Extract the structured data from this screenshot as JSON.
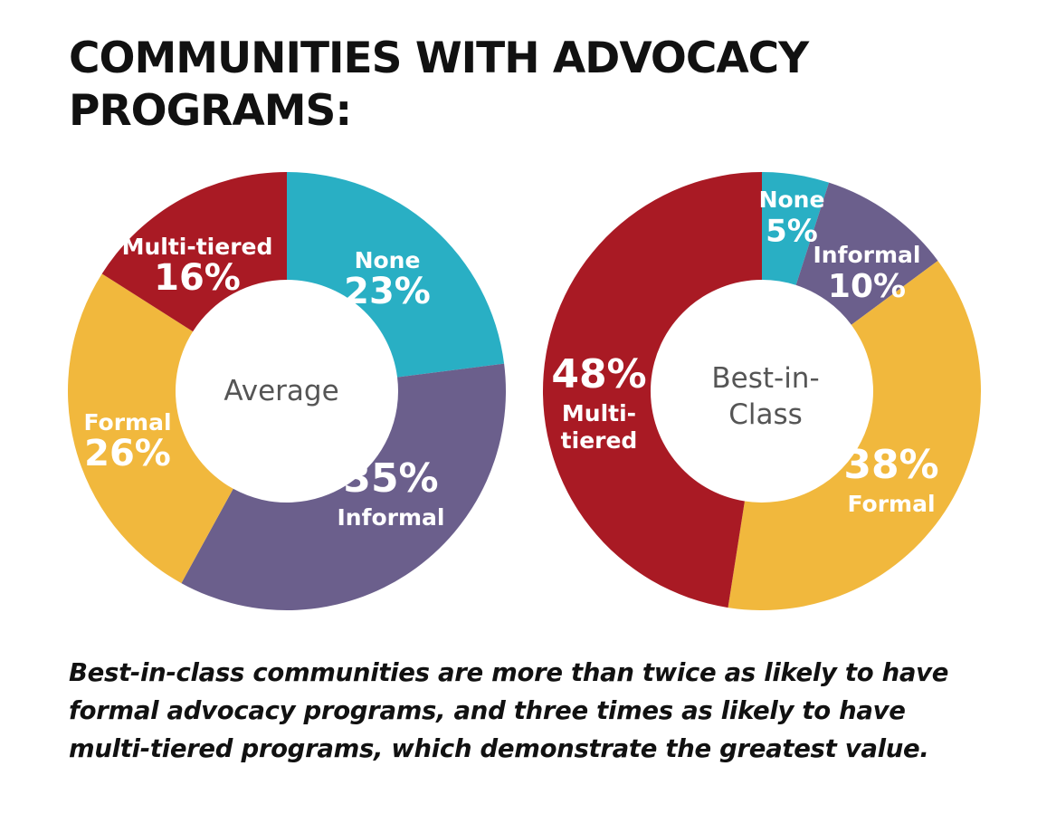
{
  "title": {
    "line1": "COMMUNITIES WITH ADVOCACY",
    "line2": "PROGRAMS:"
  },
  "caption": {
    "line1": "Best-in-class communities are more than twice as likely to have",
    "line2": "formal advocacy programs, and three times as likely to have",
    "line3": "multi-tiered programs, which demonstrate the greatest value."
  },
  "colors": {
    "None": "#29afc4",
    "Informal": "#6b5f8c",
    "Formal": "#f1b83d",
    "Multi-tiered": "#a91a24"
  },
  "chart_data": [
    {
      "type": "pie",
      "center_label": "Average",
      "slices": [
        {
          "category": "None",
          "value": 23,
          "label_pct": "23%",
          "label_name": "None"
        },
        {
          "category": "Informal",
          "value": 35,
          "label_pct": "35%",
          "label_name": "Informal"
        },
        {
          "category": "Formal",
          "value": 26,
          "label_pct": "26%",
          "label_name": "Formal"
        },
        {
          "category": "Multi-tiered",
          "value": 16,
          "label_pct": "16%",
          "label_name": "Multi-tiered"
        }
      ]
    },
    {
      "type": "pie",
      "center_label": "Best-in-Class",
      "slices": [
        {
          "category": "None",
          "value": 5,
          "label_pct": "5%",
          "label_name": "None"
        },
        {
          "category": "Informal",
          "value": 10,
          "label_pct": "10%",
          "label_name": "Informal"
        },
        {
          "category": "Formal",
          "value": 38,
          "label_pct": "38%",
          "label_name": "Formal"
        },
        {
          "category": "Multi-tiered",
          "value": 48,
          "label_pct": "48%",
          "label_name": "Multi-tiered"
        }
      ]
    }
  ]
}
